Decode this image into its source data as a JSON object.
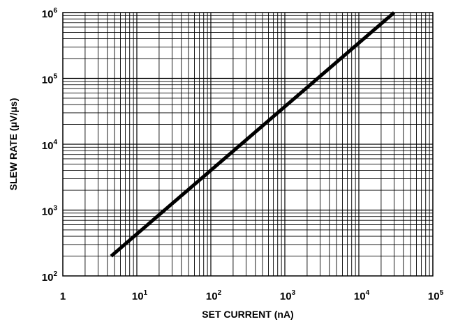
{
  "chart_data": {
    "type": "line",
    "title": "",
    "xlabel": "SET CURRENT (nA)",
    "ylabel": "SLEW RATE (μV/μs)",
    "x_scale": "log",
    "y_scale": "log",
    "xlim": [
      1,
      100000
    ],
    "ylim": [
      100,
      1000000
    ],
    "grid": true,
    "x_ticks": [
      {
        "base": "1",
        "exp": ""
      },
      {
        "base": "10",
        "exp": "1"
      },
      {
        "base": "10",
        "exp": "2"
      },
      {
        "base": "10",
        "exp": "3"
      },
      {
        "base": "10",
        "exp": "4"
      },
      {
        "base": "10",
        "exp": "5"
      }
    ],
    "y_ticks": [
      {
        "base": "10",
        "exp": "2"
      },
      {
        "base": "10",
        "exp": "3"
      },
      {
        "base": "10",
        "exp": "4"
      },
      {
        "base": "10",
        "exp": "5"
      },
      {
        "base": "10",
        "exp": "6"
      }
    ],
    "series": [
      {
        "x": [
          4.5,
          30000
        ],
        "y": [
          200,
          1000000
        ]
      }
    ],
    "colors": {
      "line": "#000000",
      "grid": "#000000"
    }
  }
}
